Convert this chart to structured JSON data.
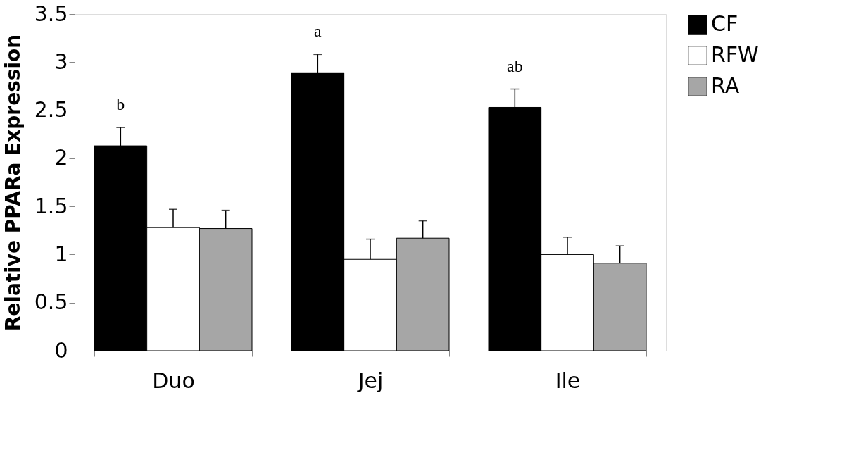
{
  "chart_data": {
    "type": "bar",
    "ylabel": "Relative PPARa Expression",
    "categories": [
      "Duo",
      "Jej",
      "Ile"
    ],
    "series": [
      {
        "name": "CF",
        "color": "#000000",
        "values": [
          2.13,
          2.89,
          2.53
        ],
        "errors": [
          [
            2.13,
            2.32
          ],
          [
            2.89,
            3.08
          ],
          [
            2.53,
            2.72
          ]
        ]
      },
      {
        "name": "RFW",
        "color": "#ffffff",
        "values": [
          1.28,
          0.95,
          1.0
        ],
        "errors": [
          [
            1.28,
            1.47
          ],
          [
            0.95,
            1.16
          ],
          [
            1.0,
            1.18
          ]
        ]
      },
      {
        "name": "RA",
        "color": "#a6a6a6",
        "values": [
          1.27,
          1.17,
          0.91
        ],
        "errors": [
          [
            1.27,
            1.46
          ],
          [
            1.17,
            1.35
          ],
          [
            0.91,
            1.09
          ]
        ]
      }
    ],
    "annotations": [
      "b",
      "a",
      "ab"
    ],
    "ylim": [
      0,
      3.5
    ],
    "yticks": [
      0,
      0.5,
      1,
      1.5,
      2,
      2.5,
      3,
      3.5
    ],
    "grid": false,
    "legend": "right"
  }
}
